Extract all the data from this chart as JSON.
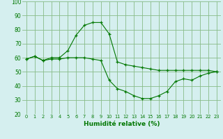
{
  "line1_x": [
    0,
    1,
    2,
    3,
    4,
    5,
    6,
    7,
    8,
    9,
    10,
    11,
    12,
    13,
    14,
    15,
    16,
    17,
    18,
    19,
    20,
    21,
    22,
    23
  ],
  "line1_y": [
    59,
    61,
    58,
    60,
    60,
    65,
    76,
    83,
    85,
    85,
    77,
    57,
    55,
    54,
    53,
    52,
    51,
    51,
    51,
    51,
    51,
    51,
    51,
    50
  ],
  "line2_x": [
    0,
    1,
    2,
    3,
    4,
    5,
    6,
    7,
    8,
    9,
    10,
    11,
    12,
    13,
    14,
    15,
    16,
    17,
    18,
    19,
    20,
    21,
    22,
    23
  ],
  "line2_y": [
    59,
    61,
    58,
    59,
    59,
    60,
    60,
    60,
    59,
    58,
    44,
    38,
    36,
    33,
    31,
    31,
    33,
    36,
    43,
    45,
    44,
    47,
    49,
    50
  ],
  "line_color": "#007700",
  "bg_color": "#d5efef",
  "grid_color": "#88bb88",
  "xlabel": "Humidité relative (%)",
  "ylim": [
    20,
    100
  ],
  "xlim": [
    -0.5,
    23.5
  ],
  "yticks": [
    20,
    30,
    40,
    50,
    60,
    70,
    80,
    90,
    100
  ],
  "xticks": [
    0,
    1,
    2,
    3,
    4,
    5,
    6,
    7,
    8,
    9,
    10,
    11,
    12,
    13,
    14,
    15,
    16,
    17,
    18,
    19,
    20,
    21,
    22,
    23
  ],
  "xlabel_fontsize": 6.5,
  "xlabel_color": "#007700",
  "xtick_fontsize": 4.8,
  "ytick_fontsize": 5.5,
  "tick_color": "#007700"
}
